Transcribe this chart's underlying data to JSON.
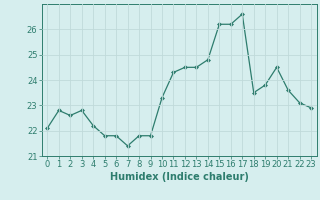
{
  "x": [
    0,
    1,
    2,
    3,
    4,
    5,
    6,
    7,
    8,
    9,
    10,
    11,
    12,
    13,
    14,
    15,
    16,
    17,
    18,
    19,
    20,
    21,
    22,
    23
  ],
  "y": [
    22.1,
    22.8,
    22.6,
    22.8,
    22.2,
    21.8,
    21.8,
    21.4,
    21.8,
    21.8,
    23.3,
    24.3,
    24.5,
    24.5,
    24.8,
    26.2,
    26.2,
    26.6,
    23.5,
    23.8,
    24.5,
    23.6,
    23.1,
    22.9
  ],
  "line_color": "#2e7d6e",
  "marker": "D",
  "marker_size": 2.0,
  "xlabel": "Humidex (Indice chaleur)",
  "ylim": [
    21,
    27
  ],
  "xlim": [
    -0.5,
    23.5
  ],
  "yticks": [
    21,
    22,
    23,
    24,
    25,
    26
  ],
  "xticks": [
    0,
    1,
    2,
    3,
    4,
    5,
    6,
    7,
    8,
    9,
    10,
    11,
    12,
    13,
    14,
    15,
    16,
    17,
    18,
    19,
    20,
    21,
    22,
    23
  ],
  "bg_color": "#d6eeee",
  "grid_color": "#c0dada",
  "tick_color": "#2e7d6e",
  "label_color": "#2e7d6e",
  "font_size_xlabel": 7.0,
  "font_size_ticks": 6.0
}
